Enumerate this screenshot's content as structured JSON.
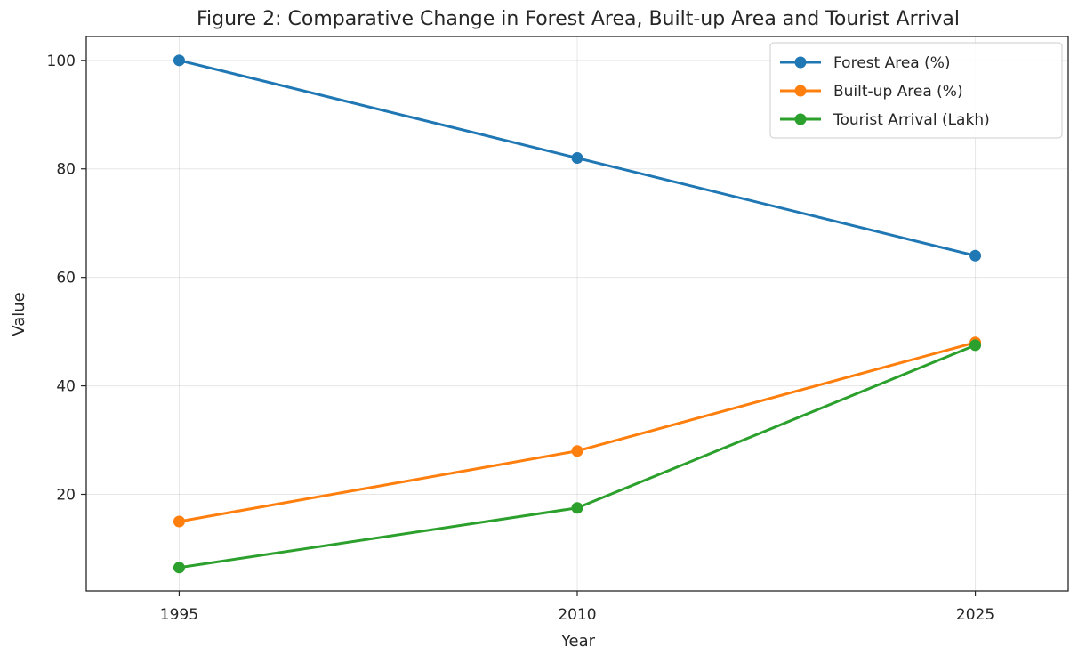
{
  "chart_data": {
    "type": "line",
    "title": "Figure 2: Comparative Change in Forest Area, Built-up Area and Tourist Arrival",
    "xlabel": "Year",
    "ylabel": "Value",
    "x": [
      1995,
      2010,
      2025
    ],
    "x_tick_labels": [
      "1995",
      "2010",
      "2025"
    ],
    "xlim": [
      1991.5,
      2028.5
    ],
    "ylim": [
      2.2,
      104.4
    ],
    "y_ticks": [
      20,
      40,
      60,
      80,
      100
    ],
    "grid": true,
    "legend_position": "top-right",
    "series": [
      {
        "name": "Forest Area (%)",
        "values": [
          100,
          82,
          64
        ],
        "color": "#1f77b4"
      },
      {
        "name": "Built-up Area (%)",
        "values": [
          15,
          28,
          48
        ],
        "color": "#ff7f0e"
      },
      {
        "name": "Tourist Arrival (Lakh)",
        "values": [
          6.5,
          17.5,
          47.5
        ],
        "color": "#2ca02c"
      }
    ]
  }
}
